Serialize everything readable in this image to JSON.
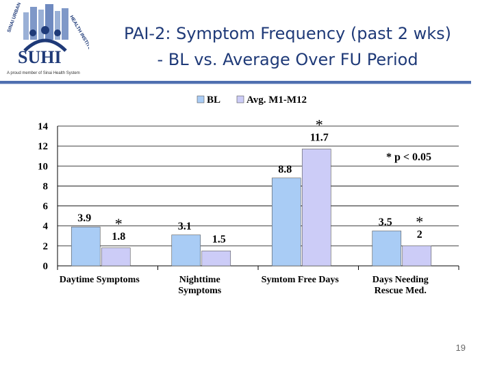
{
  "header": {
    "title_line1": "PAI-2: Symptom Frequency (past 2 wks)",
    "title_line2": "- BL vs. Average Over FU Period",
    "page_number": "19"
  },
  "logo": {
    "text": "SUHI",
    "arc_left": "SINAI URBAN",
    "arc_right": "HEALTH INSTITUTE",
    "tagline": "A proud member of Sinai Health System"
  },
  "colors": {
    "bl": "#a9ccf5",
    "fu": "#ccccf7",
    "title": "#1f3a78",
    "rule": "#4f6fb0"
  },
  "chart_data": {
    "type": "bar",
    "categories": [
      "Daytime Symptoms",
      "Nighttime Symptoms",
      "Symtom Free Days",
      "Days Needing Rescue Med."
    ],
    "series": [
      {
        "name": "BL",
        "values": [
          3.9,
          3.1,
          8.8,
          3.5
        ],
        "labels": [
          "3.9",
          "3.1",
          "8.8",
          "3.5"
        ]
      },
      {
        "name": "Avg. M1-M12",
        "values": [
          1.8,
          1.5,
          11.7,
          2.0
        ],
        "labels": [
          "1.8",
          "1.5",
          "11.7",
          "2"
        ]
      }
    ],
    "significant": [
      true,
      false,
      true,
      true
    ],
    "significance_marker": "*",
    "note": "* p < 0.05",
    "ylim": [
      0,
      14
    ],
    "yticks": [
      "0",
      "2",
      "4",
      "6",
      "8",
      "10",
      "12",
      "14"
    ],
    "legend_position": "top",
    "grid": true
  }
}
